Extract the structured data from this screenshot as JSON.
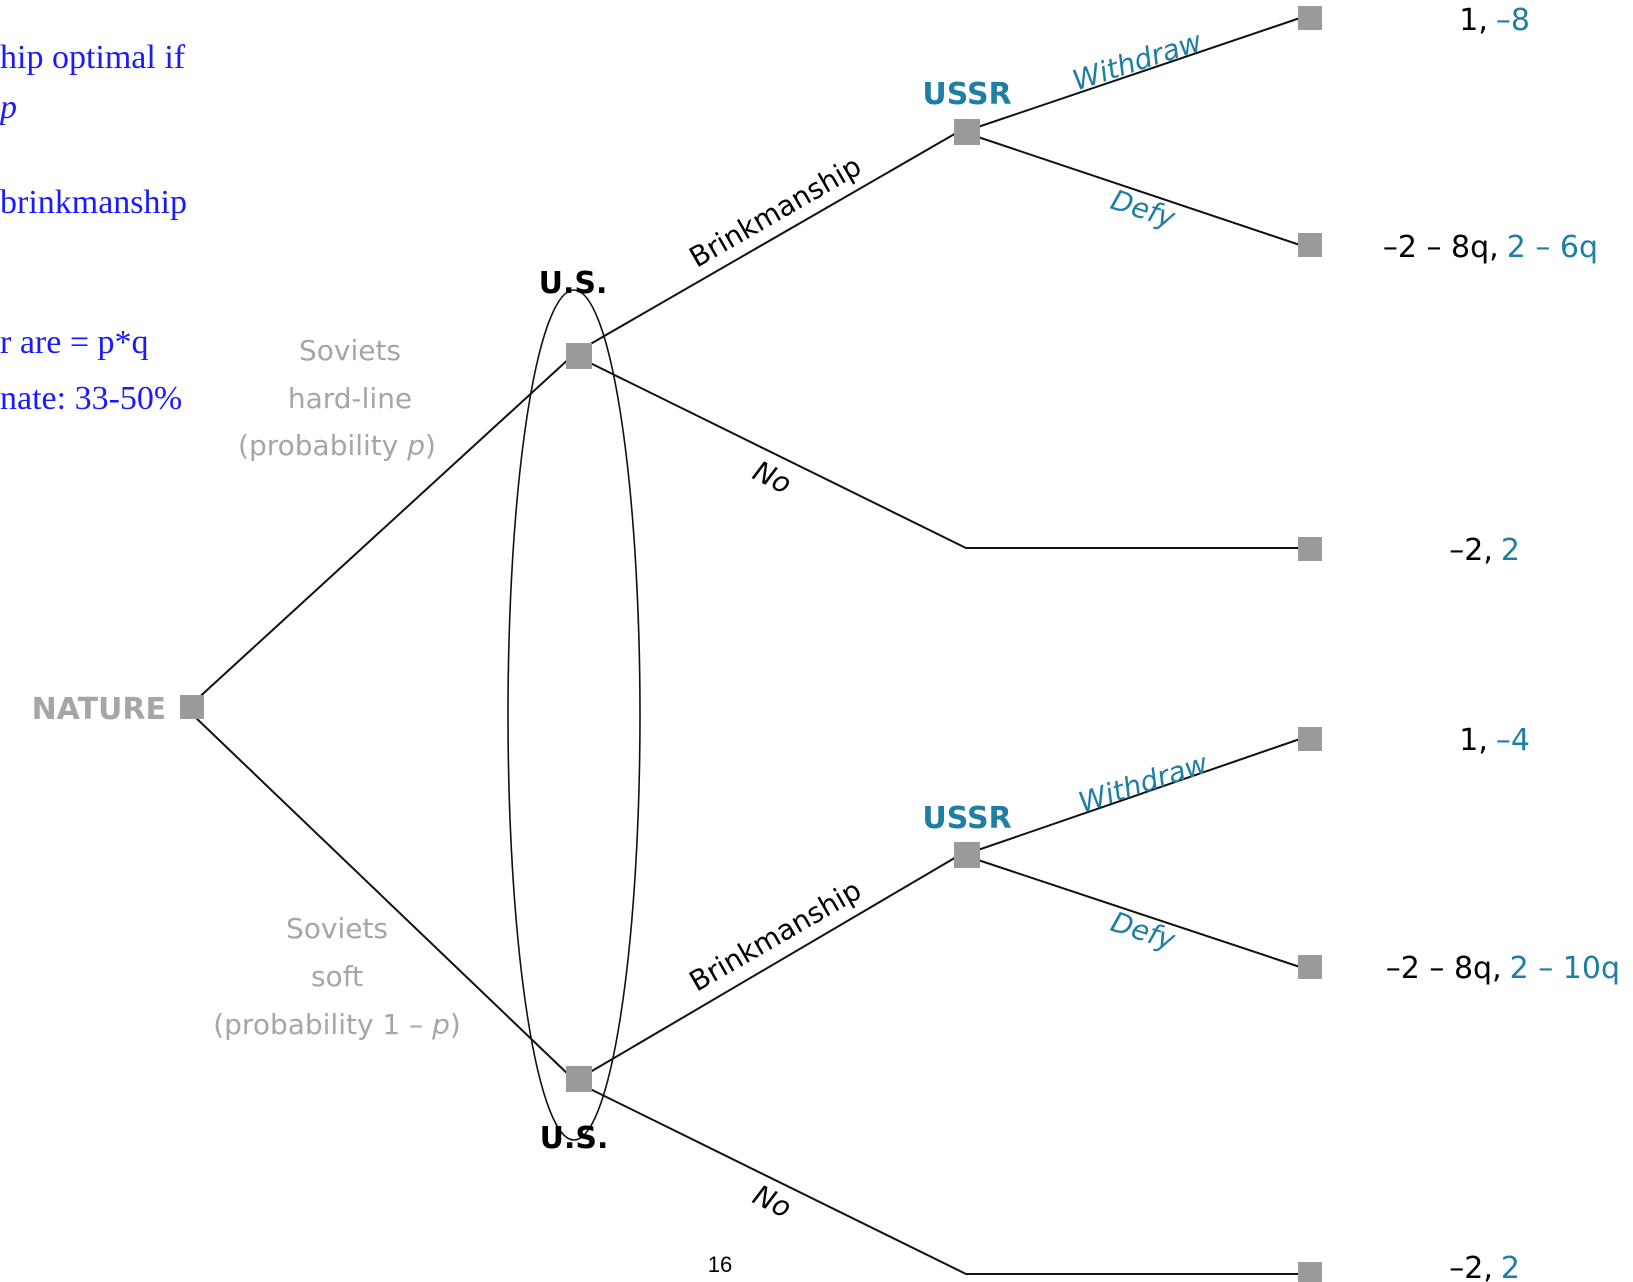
{
  "notes": {
    "line1": "hip optimal if",
    "line2": "p",
    "line3": "brinkmanship",
    "line4": "r are = p*q",
    "line5": "nate: 33-50%"
  },
  "nature": {
    "label": "NATURE"
  },
  "chance": {
    "hard": {
      "line1": "Soviets",
      "line2": "hard-line",
      "line3_prefix": "(probability ",
      "line3_var": "p",
      "line3_suffix": ")"
    },
    "soft": {
      "line1": "Soviets",
      "line2": "soft",
      "line3_prefix": "(probability 1 – ",
      "line3_var": "p",
      "line3_suffix": ")"
    }
  },
  "players": {
    "us_top": "U.S.",
    "us_bottom": "U.S.",
    "ussr_top": "USSR",
    "ussr_bottom": "USSR"
  },
  "actions": {
    "brink_top": "Brinkmanship",
    "brink_bottom": "Brinkmanship",
    "no_top": "No",
    "no_bottom": "No",
    "withdraw_top": "Withdraw",
    "withdraw_bottom": "Withdraw",
    "defy_top": "Defy",
    "defy_bottom": "Defy"
  },
  "payoffs": [
    {
      "us": "1,",
      "ussr": "–8"
    },
    {
      "us": "–2 – 8q,",
      "ussr": "2 – 6q"
    },
    {
      "us": "–2,",
      "ussr": "2"
    },
    {
      "us": "1,",
      "ussr": "–4"
    },
    {
      "us": "–2 – 8q,",
      "ussr": "2 – 10q"
    },
    {
      "us": "–2,",
      "ussr": "2"
    }
  ],
  "page_number": "16",
  "colors": {
    "us_payoff": "#000000",
    "ussr": "#1f7fa3",
    "chance": "#a6a6a6",
    "notes": "#1a1aff",
    "node": "#9a9a9a"
  }
}
